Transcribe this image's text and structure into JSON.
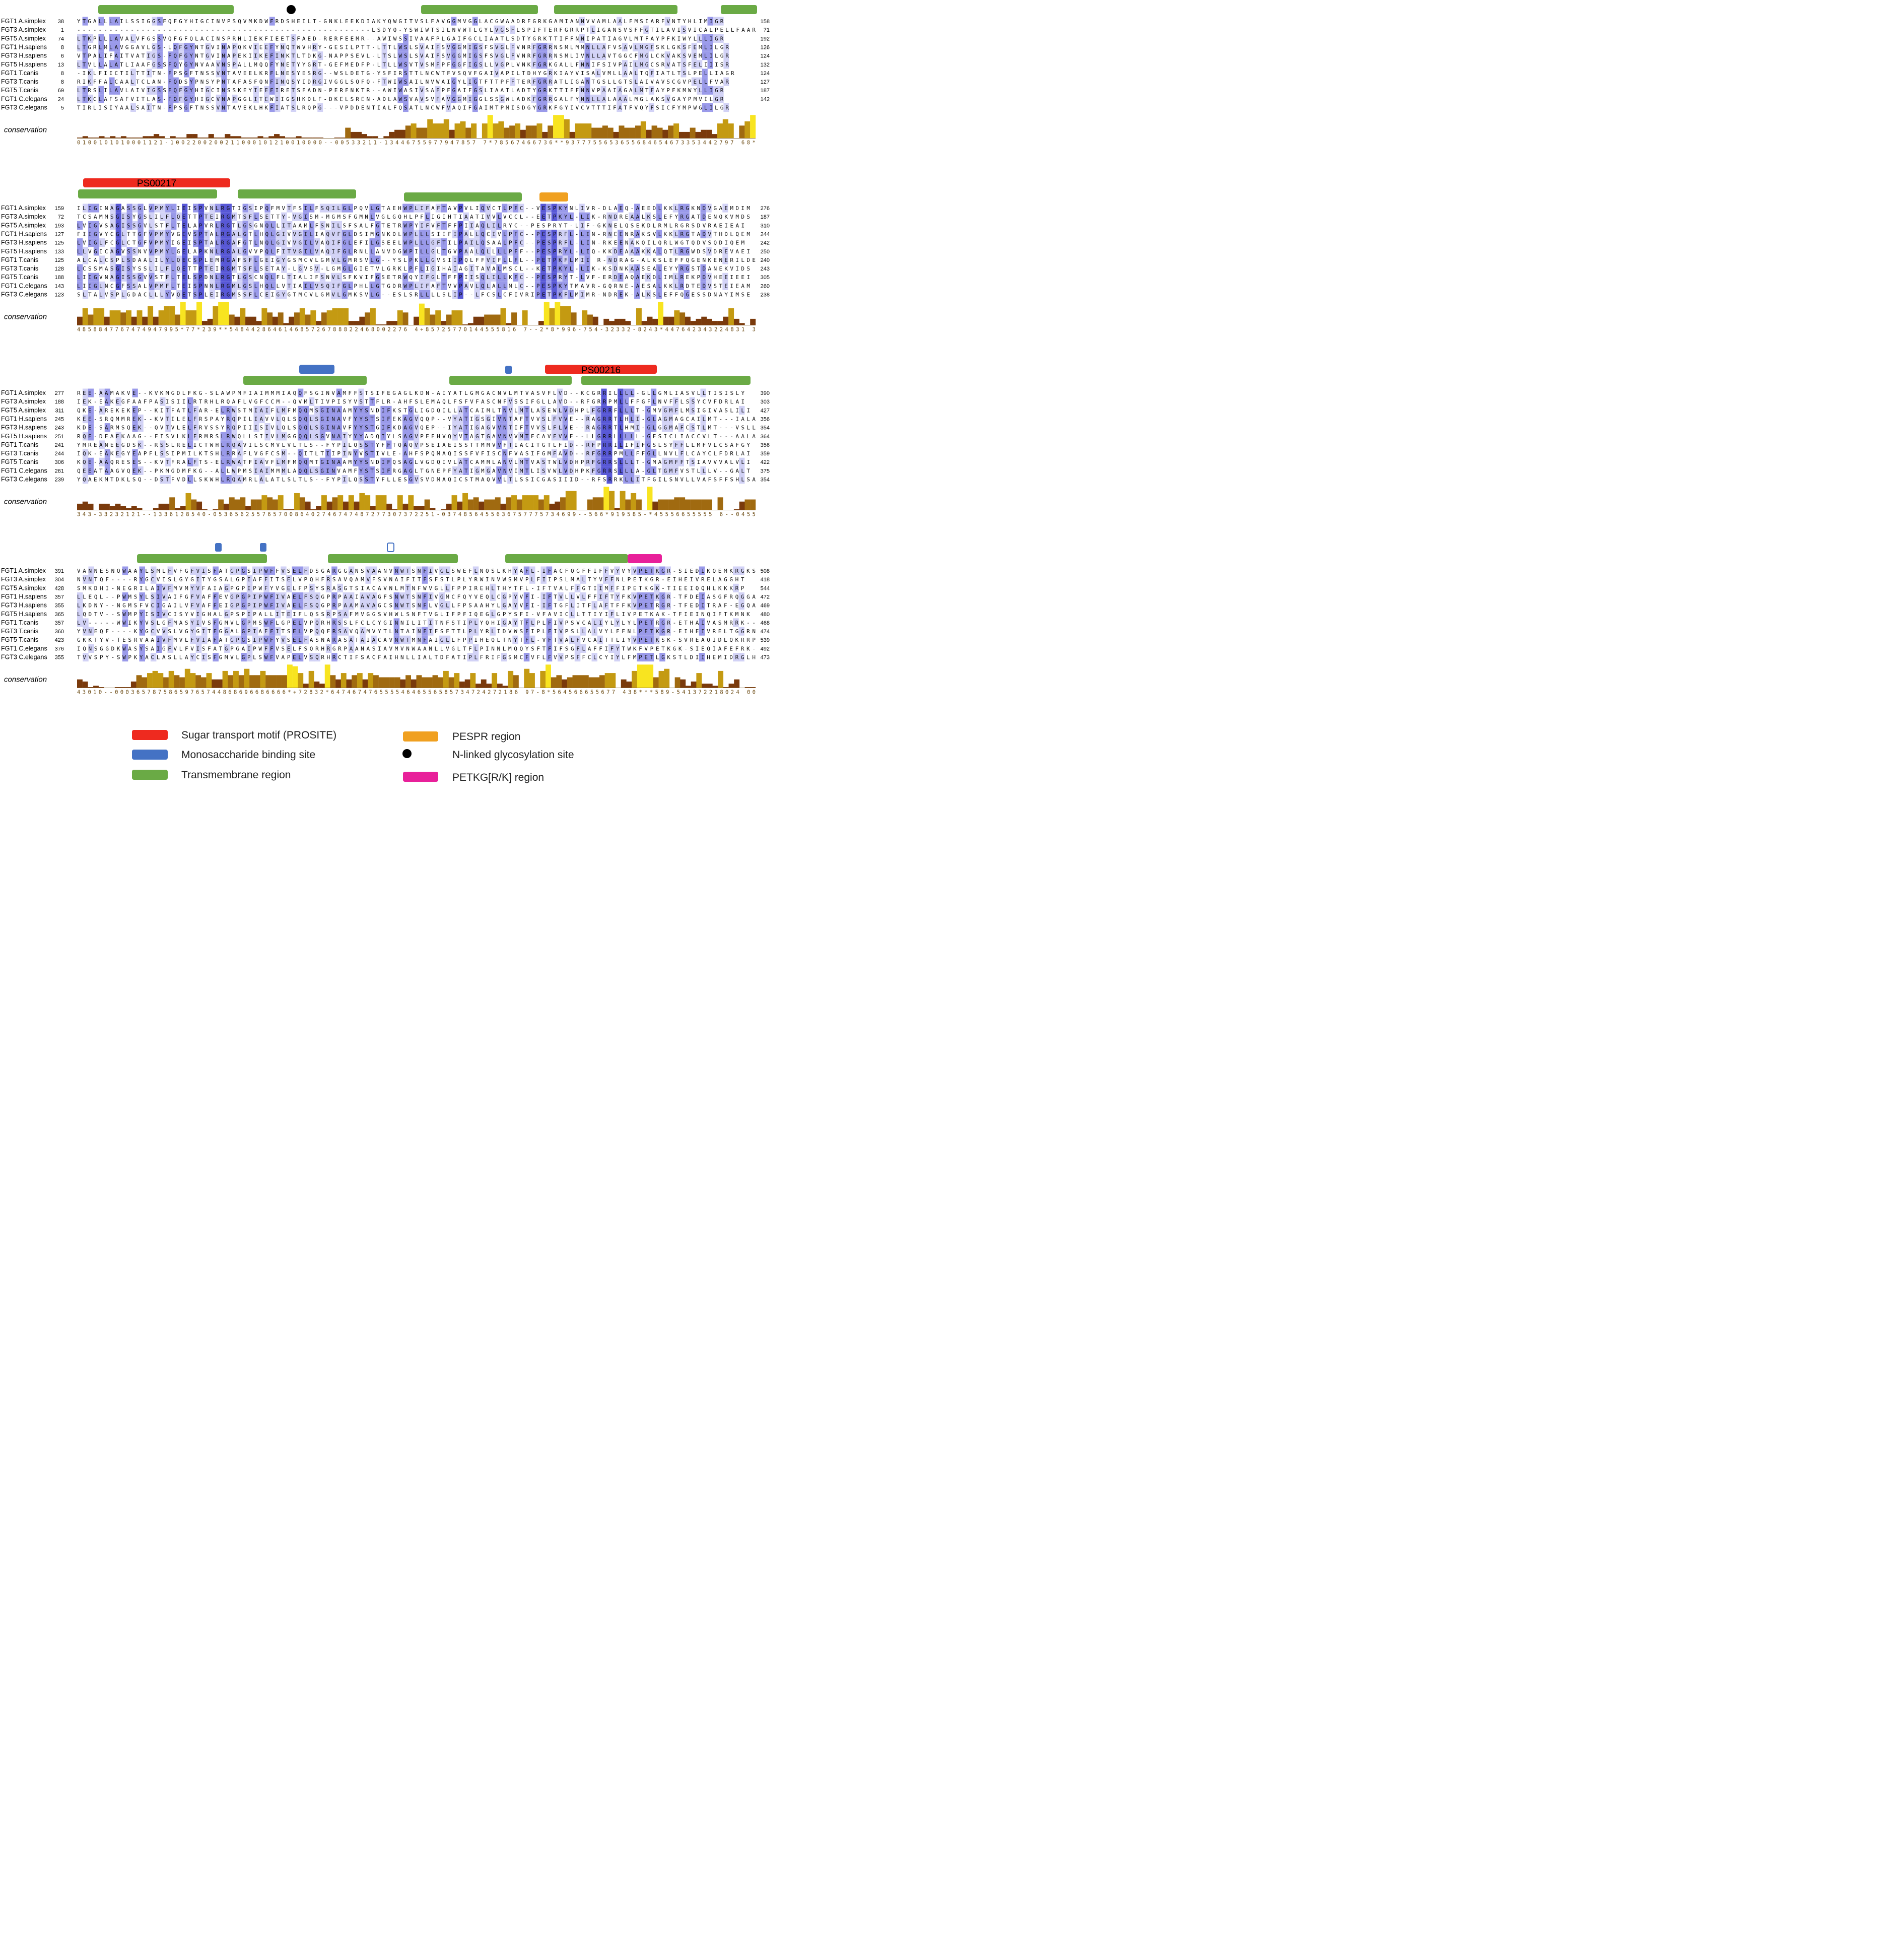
{
  "colors": {
    "transmembrane": "#6aaa45",
    "sugar_motif": "#ee2a1f",
    "binding_site": "#4472c4",
    "pespr": "#f0a020",
    "petkg": "#e8209a",
    "glyco": "#000000",
    "shade_strong": "#5858d6",
    "shade_mid": "#9a9aea",
    "shade_light": "#d2d2f6",
    "cons_low": "#7a3a0c",
    "cons_mid": "#c49a12",
    "cons_high": "#f8e420"
  },
  "conservation_label": "conservation",
  "motif_labels": {
    "ps00217": "PS00217",
    "ps00216": "PS00216"
  },
  "blocks": [
    {
      "names": [
        "FGT1 A.simplex",
        "FGT3 A.simplex",
        "FGT5 A.simplex",
        "FGT1 H.sapiens",
        "FGT3 H.sapiens",
        "FGT5 H.sapiens",
        "FGT1 T.canis",
        "FGT3 T.canis",
        "FGT5 T.canis",
        "FGT1 C.elegans",
        "FGT3 C.elegans"
      ],
      "starts": [
        "38",
        "1",
        "74",
        "8",
        "6",
        "13",
        "8",
        "8",
        "69",
        "24",
        "5"
      ],
      "ends": [
        "158",
        "71",
        "192",
        "126",
        "124",
        "132",
        "124",
        "127",
        "187",
        "142",
        ""
      ],
      "seqs": [
        "YTGALLLAILSSIGGSFQFGYHIGCINVPSQVMKDWFRDSHEILT-GNKLEEKDIAKYQWGITVSLFAVGGMVGGLACGWAADRFGRKGAMIANNVVAMLAALFMSIARFVNTYHLIMIGR",
        "-------------------------------------------------------LSDYQ-YSWIWTSILNVWTLGYLVGSFLSPIFTERFGRRPTLIGANSVSFFGTILAVISVICALPELLFAAR",
        "LTKPLLLAVALVFGSSVQFGFQLACINSPRHLIEKFIEETSFAED-RERFEEMR--AWIWSSIVAAFPLGAIFGCLIAATLSDTYGRKTTIFFNNIPATIAGVLMTFAYPFKIWYLLLIGR",
        "LTGRLMLAVGGAVLGS-LQFGYNTGVINAPQKVIEEFYNQTWVHRY-GESILPTT-LTTLWSLSVAIFSVGGMIGSFSVGLFVNRFGRRNSMLMMNLLAFVSAVLMGFSKLGKSFEMLILGR",
        "VTPALIFAITVATIGS-FQFGYNTGVINAPEKIIKEFINKTLTDKG-NAPPSEVL-LTSLWSLSVAIFSVGGMIGSFSVGLFVNRFGRRNSMLIVNLLAVTGGCFMGLCKVAKSVEMLILGR",
        "LTVLLALATLIAAFGSSFQYGYNVAAVNSPALLMQQFYNETYYGRT-GEFMEDFP-LTLLWSVTVSMFPFGGFIGSLLVGPLVNKFGRKGALLFNNIFSIVPAILMGCSRVATSFELIIISR",
        "-IKLFIICTILTTITN-FPSGFTNSSVNTAVEELKRFLNESYESRG--WSLDETG-YSFIRSTTLNCWTFVSQVFGAIVAPILTDHYGRKIAYVISALVMLLAALTQFIATLTSLPELLIAGR",
        "RIKFFALCAALTCLAN-FQDSYPNSYPNTAFASFQNFINQSYIDRGIVGGLSQFQ-FTWIWSAILNVWAIGYLIGTFTTPFFTERFGRRATLIGANTGSLLGTSLAIVAVSCGVPELLFVAR",
        "LTRSLILAVLAIVIGSSFQFGYHIGCINSSKEYIEEFIRETSFADN-PERFNKTR--AWIWASIVSAFPFGAIFGSLIAATLADTYGRKTTIFFNNVPAAIAGALMTFAYPFKMWYLLIGR",
        "LTKCLAFSAFVITLAS-FQFGYHIGCVNAPGGLITEWIIGSHKDLF-DKELSREN-ADLAWSVAVSVFAVGGMIGGLSSGWLADKFGRRGALFYNNLLALAAALMGLAKSVGAYPMVILGR",
        "TIRLISIYAALSAITN-FPSGFTNSSVNTAVEKLHKFIATSLRQPG---VPDDENTIALFQSATLNCWFVAQIFGAIMTPMISDGYGRKFGYIVCVTTTIFATFVQYFSICFYMPWGLILGR"
      ],
      "cons_digits": "0100101010001121-1002200200211000101210010000--00533211-13446755977947857 7*78567466736**9377755653655684654673353442797 68*"
    },
    {
      "names": [
        "FGT1 A.simplex",
        "FGT3 A.simplex",
        "FGT5 A.simplex",
        "FGT1 H.sapiens",
        "FGT3 H.sapiens",
        "FGT5 H.sapiens",
        "FGT1 T.canis",
        "FGT3 T.canis",
        "FGT5 T.canis",
        "FGT1 C.elegans",
        "FGT3 C.elegans"
      ],
      "starts": [
        "159",
        "72",
        "193",
        "127",
        "125",
        "133",
        "125",
        "128",
        "188",
        "143",
        "123"
      ],
      "ends": [
        "276",
        "187",
        "310",
        "244",
        "242",
        "250",
        "240",
        "243",
        "305",
        "260",
        "238"
      ],
      "seqs": [
        "ILIGINAGASSGLVPMYLIEISPVNLRGTIGSIPQFMVTFSILFSQILGLPQVLGTAEHWPLIFAFTAVPVLIQVCTLPFC--VESPKYNLIVR-DLAEQ-AEEDLKKLRGKNDVGAEMDIM",
        "TCSAMMSGISYGSLILFLQETTPTEIRGMTSFLSETTY-VGISM-MGMSFGMNLVGLGQHLPFLIGIHTIAATIVVLVCCL--EETPKYL-LIK-RNDREAALKSLEFYRGATDENQKVMDS",
        "LVIGVSAGISSGVLSTFLTELAPVRLRGTLGSGNQLLITAAMLFSNILSFSALFGTETRWPYIFVFTFFPIIAQLILRYC--PESPRYT-LIF-GKNELQSEKDLRMLRGRSDVRAEIEAI",
        "FIIGVYCGLTTGFVPMYVGEVSPTALRGALGTLHQLGIVVGILIAQVFGLDSIMGNKDLWPLLLSIIFIPALLQCIVLPFC--PESPRFL-LIN-RNEENRAKSVLKKLRGTADVTHDLQEM",
        "LVIGLFCGLCTGFVPMYIGEISPTALRGAFGTLNQLGIVVGILVAQIFGLEFILGSEELWPLLLGFTILPAILQSAALPFC--PESPRFL-LIN-RKEENAKQILQRLWGTQDVSQDIQEM",
        "LLVGICAGVSSNVVPMYLGELAPKNLRGALGVVPQLFITVGILVAQIFGLRNLLANVDGWPILLGLTGVPAALQLLLLPFF--PESPRYL-LIQ-KKDEAAAKKALQTLRGWDSVDREVAEI",
        "ALCALCSPLSDAALILYLQECSPLEMRGAFSFLGEIGYGSMCVLGMVLGMRSVLG--YSLPKLLGVSIIPQLFFVIFLLFL--PETPKFLMII R-NDRAG-ALKSLEFFQGENKENERILDE",
        "LCSSMASGISYSSLILFLQETTPTEIRGMTSFLSETAY-LGVSV-LGMGLGIETVLGRKLPFLIGIHAIAGITAVALMSCL--KETPKYL-LIK-KSDNKAASEALEYYRGSTDANEKVIDS",
        "LIIGVNAGISSGVVSTFLTELSPDNLRGTLGSCNQLFLTIALIFSNVLSFKVIFGSETRWQYIFGLTFFPIISQLILLKFC--PESPRYT-LVF-ERDEAQAEKDLIMLREKPDVHEEIEEI",
        "LIIGLNCGFSSALVPMFLTEISPNNLRGMLGSLHQLLVTIAILVSQIFGLPHLLGTGDRWPLIFAFTVVPAVLQLALLMLC--PESPKYTMAVR-GQRNE-AESALKKLRDTEDVSTEIEAM",
        "SLTALVSPLGDACLLLYVQETSPLEIRGMSSFLCEIGYGTMCVLGMVLGMKSVLG--ESLSRLLLLSLIP--LFCSLCFIVRIPETPKFLMIMR-NDREK-ALKSLEFFQGESSDNAYIMSE"
      ],
      "cons_digits": "4858847767474947995*77*239**548442864614685726788822468002276 4+85725770144555816 7--2*8*996-754-32332-8243*447642343224831 3"
    },
    {
      "names": [
        "FGT1 A.simplex",
        "FGT3 A.simplex",
        "FGT5 A.simplex",
        "FGT1 H.sapiens",
        "FGT3 H.sapiens",
        "FGT5 H.sapiens",
        "FGT1 T.canis",
        "FGT3 T.canis",
        "FGT5 T.canis",
        "FGT1 C.elegans",
        "FGT3 C.elegans"
      ],
      "starts": [
        "277",
        "188",
        "311",
        "245",
        "243",
        "251",
        "241",
        "244",
        "306",
        "261",
        "239"
      ],
      "ends": [
        "390",
        "303",
        "427",
        "356",
        "354",
        "364",
        "356",
        "359",
        "422",
        "375",
        "354"
      ],
      "seqs": [
        "REE-AAMAKVE--KVKMGDLFKG-SLAWPMFIAIMMMIAQQFSGINVAMFFSTSIFEGAGLKDN-AIYATLGMGACNVLMTVASVFLVD--KCGRRILLLL-GLLGMLIASVLLTISISLY",
        "IEK-EAKEGFAAFPASISIILRTRHLRQAFLVGFCCM--QVMLTIVPISYVSTTFLR-AHFSLEMAQLFSFVFASCNFVSSIFGLLAVD--RFGRRPMLLFFGFLNVFFLSSYCVFDRLAI",
        "QKE-AREKEKEP--KITFATLFAR-ELRWSTMIAIFLMFMQQMSGINAAMYYSNDIFKSTGLIGDQILLATCAIMLTNVLMTLASEWLVDHPLFGRRFLLLT-GMVGMFLMSIGIVASLILI",
        "KEE-SRQMMREK--KVTILELFRSPAYRQPILIAVVLQLSQQLSGINAVFYYSTSIFEKAGVQQP--VYATIGSGIVNTAFTVVSLFVVE--RAGRRTLHLI-GLAGMAGCAILMT---IALA",
        "KDE-SARMSQEK--QVTVLELFRVSSYRQPIIISIVLQLSQQLSGINAVFYYSTGIFKDAGVQEP--IYATIGAGVVNTIFTVVSLFLVE--RAGRRTLHMI-GLGGMAFCSTLMT---VSLL",
        "RQE-DEAEKAAG--FISVLKLFRMRSLRWQLLSIIVLMGGQQLSGVNAIYYYADQIYLSAGVPEEHVQYVTAGTGAVNVVMTFCAVFVVE--LLGRRLLLLL-GFSICLIACCVLT---AALA",
        "YMREANEEGDSK--RSSLRELICTWHLRQAVILSCMVLVLTLS--FYPILQSSTYFFTQAQVPSEIAEISSTTMMVVFTIACITGTLFID--RFPRRILIFIFGSLSYFFLLMFVLCSAFGY",
        "IQK-EAKEGYEAPFLSSIPMILKTSHLRRAFLVGFCSM--QITLTIIPINYVSTIVLE-AHFSPQMAQISSFVFISCNFVASIFGMFAVD--RFGRRPMLLFFGLLNVLFLCAYCLFDRLAI",
        "KQE-AAQRESES--KVTFRALFTS-ELRWATFIAVFLMFMQQMTGINAAMYYSNDIFQSAGLVGDQIVLATCAMMLANVLMTVASTWLVDHPRFGRRSLLLT-GMAGMFFTSIAVVVALVLI",
        "QEEATAAGVQEK--PKMGDMFKG--ALLWPMSIAIMMMLAQQLSGINVAMFYSTSIFRGAGLTGNEPFYATIGMGAVNVIMTLISVWLVDHPKFGRRSLLLA-GLTGMFVSTLLLV--GALT",
        "YQAEKMTDKLSQ--DSTFVDLLSKWHLRQAMRLALATLSLTLS--FYPILQSSTYFLLESGVSVDMAQICSTMAQVVLTLSSICGASIIID--RFSRRKLLITFGILSNVLLVAFSFFSHLSA"
      ],
      "cons_digits": "343-33232121--1336128540-05365625576570086402746747487277307372251-0374856455636757775734699--566*919585-*45556655555 6--0455"
    },
    {
      "names": [
        "FGT1 A.simplex",
        "FGT3 A.simplex",
        "FGT5 A.simplex",
        "FGT1 H.sapiens",
        "FGT3 H.sapiens",
        "FGT5 H.sapiens",
        "FGT1 T.canis",
        "FGT3 T.canis",
        "FGT5 T.canis",
        "FGT1 C.elegans",
        "FGT3 C.elegans"
      ],
      "starts": [
        "391",
        "304",
        "428",
        "357",
        "355",
        "365",
        "357",
        "360",
        "423",
        "376",
        "355"
      ],
      "ends": [
        "508",
        "418",
        "544",
        "472",
        "469",
        "480",
        "468",
        "474",
        "539",
        "492",
        "473"
      ],
      "seqs": [
        "VANNESNQWAAYLSMLFVFGFVISFATGPGSIPWFFVSELFDSGARGGANSVAANVNWTSNFIVGLSWEFLNQSLKHYAFL-IFACFQGFFIFFVYVYVPETKGR-SIEDIKQEMKRGKS",
        "NVNTQF----RYGCVISLGYGITYGSALGPIAFFITSELVPQHFRSAVQAMVFSVNAIFITFSFSTLPLYRWINVWSMVPLFIIPSLMALTYVFFNLPETKGR-EIHEIVRELAGGHT",
        "SMKDHI-NEGRILAIVFMVMYVFAIAGPGPIPWFYVGELFPSYSRASGTSIACAVNLMTNFWVGLLFPPIREHLTHYTFL-IFTVALFFGTIIMFFIPETKGK-TIEEIQQHLKKKRP",
        "LLEQL--PWMSYLSIVAIFGFVAFFEVGPGPIPWFIVAELFSQGPRPAAIAVAGFSNWTSNFIVGMCFQYVEQLCGPYVFI-IFTVLLVLFFIFTYFKVPETKGR-TFDEIASGFRQGGA",
        "LKDNY--NGMSFVCIGAILVFVAFFEIGPGPIPWFIVAELFSQGPRPAAMAVAGCSNWTSNFLVGLLFPSAAHYLGAYVFI-IFTGFLITFLAFTFFKVPETRGR-TFEDITRAF-EGQA",
        "LQDTV--SWMPYISIVCISYVIGHALGPSPIPALLITEIFLQSSRPSAFMVGGSVHWLSNFTVGLIFPFIQEGLGPYSFI-VFAVICLLTTIYIFLIVPETKAK-TFIEINQIFTKMNK",
        "LV-----WWIKYVSLGFMASYIVSFGMVLGPMSWFLGPELVPQRHRSSLFCLCYGINNILITITNFSTIPLYQHIGAYTFLPLFIVPSVCALIYLYLYLPETRGR-ETHAIVASMRRK--",
        "YVNEQF----KYGCVVSLVGYGITFGGALGPIAFFITSELVPQQFRSAVQAMVYTLNTAINFIFSFTTLPLYRLIDVWSFIPLFIVPSLLALVYLFFNLPETKGR-EIHEIVRELTGGRN",
        "GKKTYV-TESRVAAIVFMVLFVIAFATGPGSIPWFYVSELFASNARASATAIACAVNWTMNFAIGLLFPPIHEQLTNYTFL-VFTVALFVCAITTLIYVPETKSK-SVREAQIDLQKRRP",
        "IQNSGGDKWASYSAIGFVLFVISFATGPGAIPWFFVSELFSQRHRGRPAANASIAVMVNWAANLLVGLTFLPINNLMQQYSFTFIFSGFLAFFIFYTWKFVPETKGK-SIEQIAFEFRK-",
        "TVVSPY-SWPKYACLASLLAYCISFGMVLGPLSWFVAPELVSQRHRCTIFSACFAIHNLLIALTDFATIPLFRIFGSMCFVFLFVVPSFFCLCYIYLFMPETLGKSTLDIIHEMIDRGLH"
      ],
      "cons_digits": "43010--00036578758659765744868696686666*+72832*64746747655554646556585734724272186 97-8*564566655677 438***589-541372218024 00"
    }
  ],
  "legend": [
    {
      "key": "sugar_motif",
      "label": "Sugar transport motif (PROSITE)"
    },
    {
      "key": "binding_site",
      "label": "Monosaccharide binding site"
    },
    {
      "key": "transmembrane",
      "label": "Transmembrane region"
    },
    {
      "key": "pespr",
      "label": "PESPR region"
    },
    {
      "key": "glyco",
      "label": "N-linked glycosylation site"
    },
    {
      "key": "petkg",
      "label": "PETKG[R/K] region"
    }
  ]
}
